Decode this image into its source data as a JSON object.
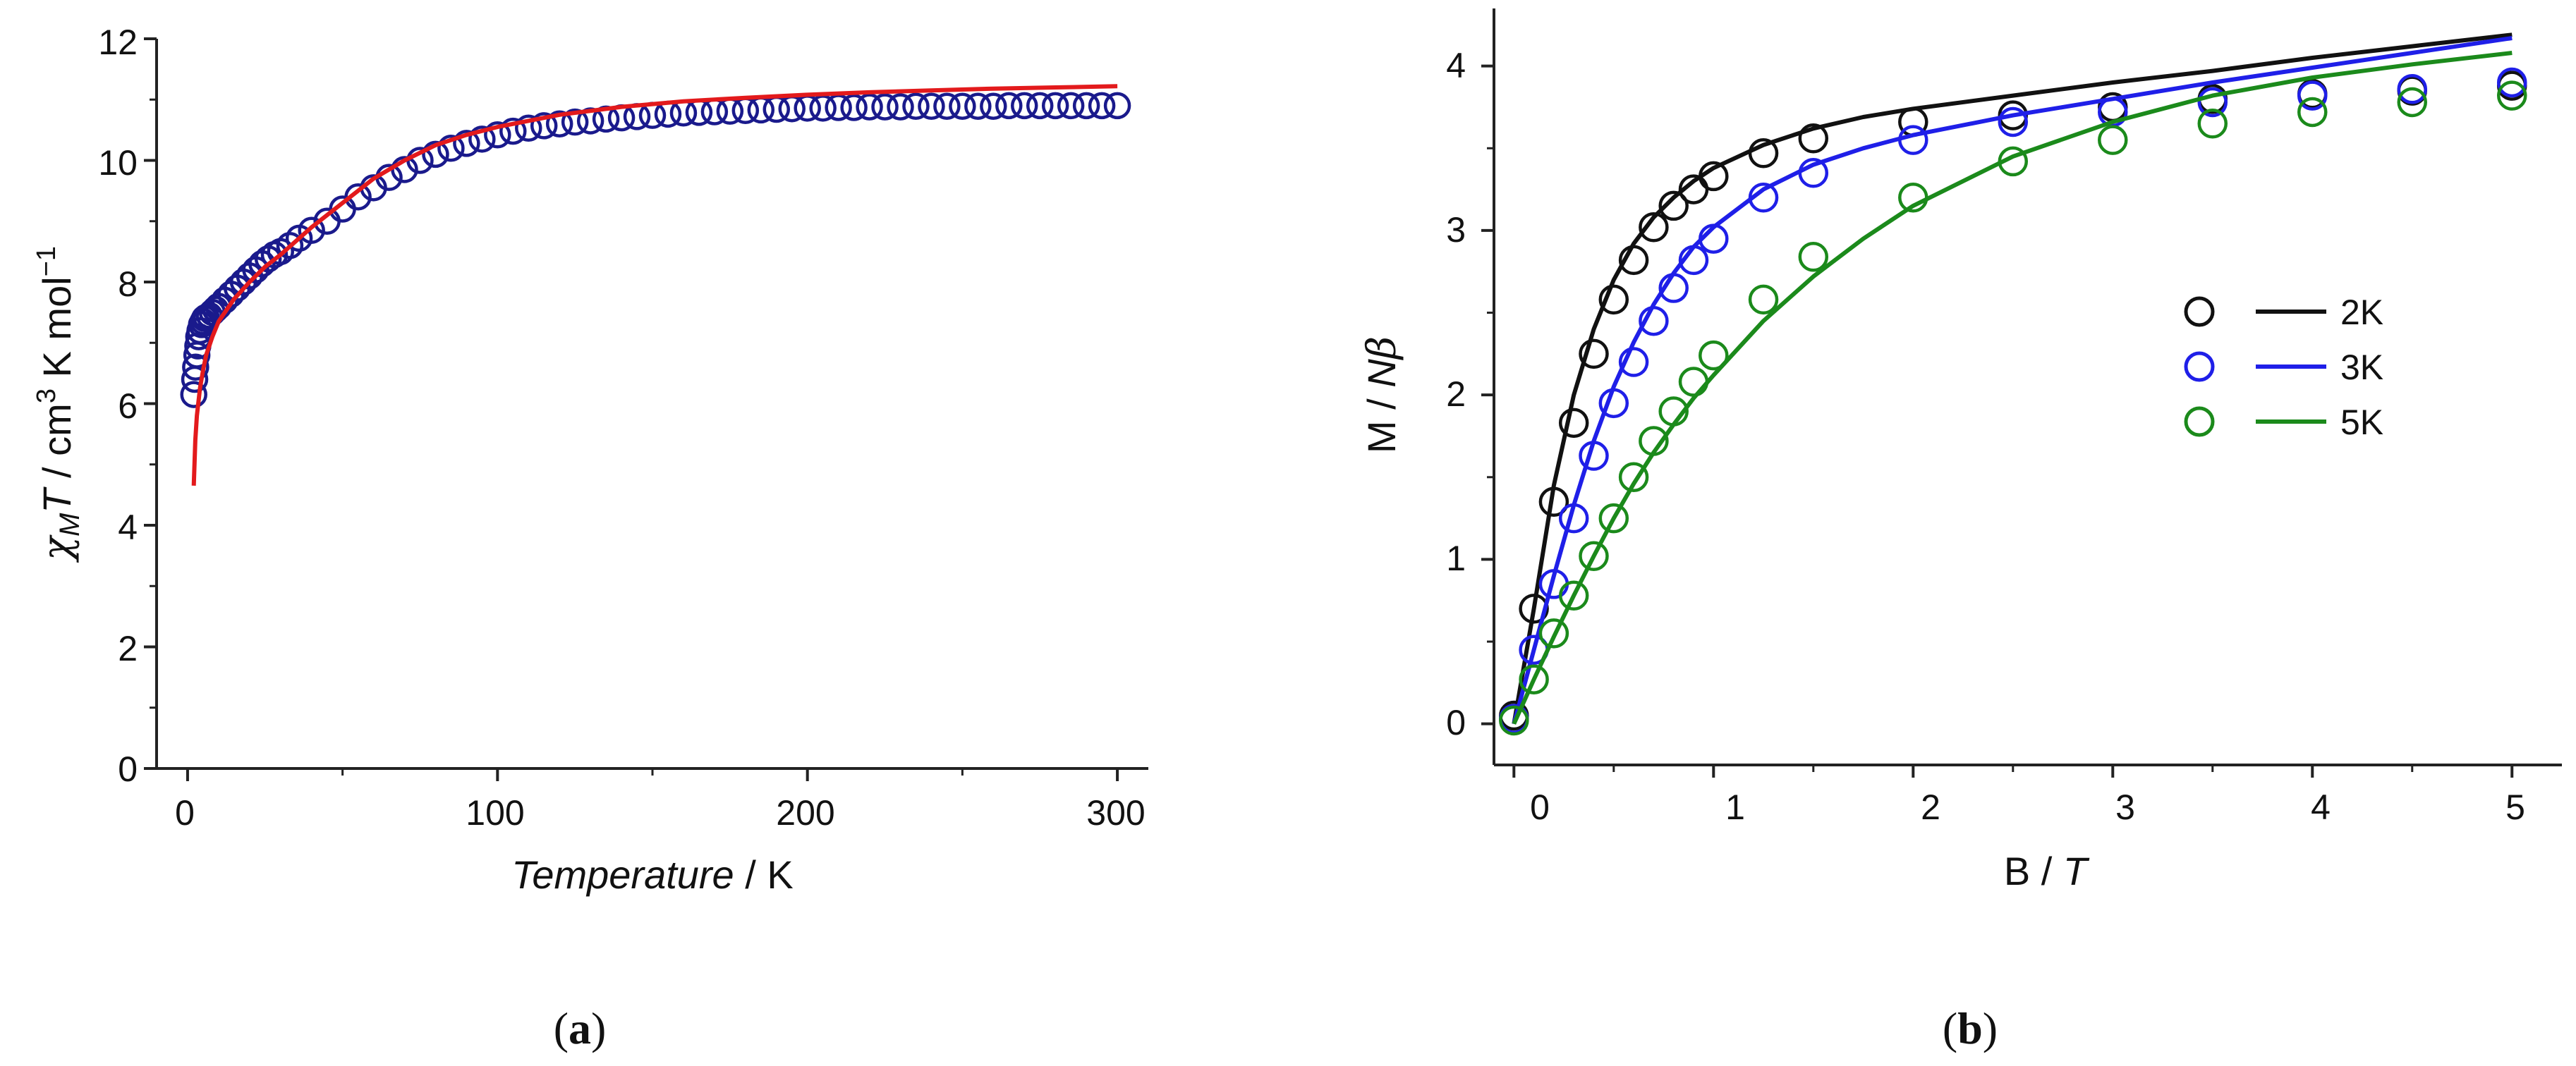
{
  "chart_data": [
    {
      "panel": "a",
      "type": "scatter",
      "title": "",
      "xlabel": {
        "italic": "Temperature",
        "rest": " / K"
      },
      "ylabel": {
        "chi": "χ",
        "sub": "M",
        "T": "T",
        "unit1": " / cm",
        "exp3": "3",
        "unit2": " K mol",
        "expm1": "−1"
      },
      "xlim": [
        -10,
        310
      ],
      "ylim": [
        0,
        12
      ],
      "xticks": [
        "0",
        "100",
        "200",
        "300"
      ],
      "yticks": [
        "0",
        "2",
        "4",
        "6",
        "8",
        "10",
        "12"
      ],
      "grid": false,
      "marker_color": "#1a1a8c",
      "fit_color": "#e31a1c",
      "experimental": {
        "x": [
          2,
          2.3,
          2.6,
          3,
          3.3,
          3.6,
          4,
          4.5,
          5,
          5.5,
          6,
          7,
          8,
          9,
          10,
          12,
          14,
          16,
          18,
          20,
          22,
          24,
          26,
          28,
          30,
          33,
          36,
          40,
          45,
          50,
          55,
          60,
          65,
          70,
          75,
          80,
          85,
          90,
          95,
          100,
          105,
          110,
          115,
          120,
          125,
          130,
          135,
          140,
          145,
          150,
          155,
          160,
          165,
          170,
          175,
          180,
          185,
          190,
          195,
          200,
          205,
          210,
          215,
          220,
          225,
          230,
          235,
          240,
          245,
          250,
          255,
          260,
          265,
          270,
          275,
          280,
          285,
          290,
          295,
          300
        ],
        "y": [
          6.15,
          6.4,
          6.6,
          6.8,
          6.95,
          7.1,
          7.2,
          7.3,
          7.35,
          7.4,
          7.42,
          7.45,
          7.5,
          7.55,
          7.6,
          7.7,
          7.8,
          7.9,
          8.0,
          8.1,
          8.2,
          8.3,
          8.38,
          8.45,
          8.5,
          8.6,
          8.72,
          8.85,
          9.0,
          9.2,
          9.4,
          9.55,
          9.72,
          9.85,
          10.0,
          10.1,
          10.2,
          10.28,
          10.35,
          10.42,
          10.48,
          10.53,
          10.57,
          10.6,
          10.63,
          10.65,
          10.68,
          10.7,
          10.72,
          10.74,
          10.76,
          10.78,
          10.79,
          10.8,
          10.81,
          10.82,
          10.83,
          10.84,
          10.85,
          10.86,
          10.86,
          10.87,
          10.87,
          10.88,
          10.88,
          10.88,
          10.89,
          10.89,
          10.89,
          10.89,
          10.89,
          10.89,
          10.9,
          10.9,
          10.9,
          10.9,
          10.9,
          10.9,
          10.9,
          10.9
        ]
      },
      "fit": {
        "x": [
          2,
          2.5,
          3,
          4,
          5,
          6,
          8,
          10,
          15,
          20,
          25,
          30,
          40,
          50,
          60,
          70,
          80,
          90,
          100,
          120,
          140,
          160,
          180,
          200,
          220,
          240,
          260,
          280,
          300
        ],
        "y": [
          4.65,
          5.4,
          5.8,
          6.25,
          6.55,
          6.8,
          7.1,
          7.35,
          7.72,
          8.0,
          8.25,
          8.45,
          8.9,
          9.3,
          9.7,
          10.0,
          10.25,
          10.42,
          10.55,
          10.75,
          10.88,
          10.97,
          11.03,
          11.08,
          11.12,
          11.15,
          11.18,
          11.2,
          11.22
        ]
      }
    },
    {
      "panel": "b",
      "type": "scatter",
      "title": "",
      "xlabel": {
        "roman": "B / ",
        "italic": "T"
      },
      "ylabel": {
        "roman": "M / ",
        "italic": "N",
        "beta": "β"
      },
      "xlim": [
        -0.1,
        5.25
      ],
      "ylim": [
        -0.25,
        4.35
      ],
      "xticks": [
        "0",
        "1",
        "2",
        "3",
        "4",
        "5"
      ],
      "yticks": [
        "0",
        "1",
        "2",
        "3",
        "4"
      ],
      "grid": false,
      "legend_position": "center-right",
      "series": [
        {
          "name": "2K",
          "color": "#111111",
          "x": [
            0,
            0.1,
            0.2,
            0.3,
            0.4,
            0.5,
            0.6,
            0.7,
            0.8,
            0.9,
            1.0,
            1.25,
            1.5,
            2.0,
            2.5,
            3.0,
            3.5,
            4.0,
            4.5,
            5.0
          ],
          "y": [
            0.05,
            0.7,
            1.35,
            1.83,
            2.25,
            2.58,
            2.82,
            3.02,
            3.15,
            3.25,
            3.33,
            3.47,
            3.56,
            3.66,
            3.7,
            3.75,
            3.8,
            3.83,
            3.85,
            3.88
          ],
          "fit_x": [
            0,
            0.1,
            0.2,
            0.3,
            0.4,
            0.5,
            0.6,
            0.7,
            0.8,
            0.9,
            1.0,
            1.25,
            1.5,
            1.75,
            2.0,
            2.5,
            3.0,
            3.5,
            4.0,
            4.5,
            5.0
          ],
          "fit_y": [
            0,
            0.7,
            1.45,
            2.0,
            2.4,
            2.7,
            2.92,
            3.08,
            3.2,
            3.3,
            3.38,
            3.52,
            3.62,
            3.69,
            3.74,
            3.82,
            3.9,
            3.97,
            4.05,
            4.12,
            4.19
          ]
        },
        {
          "name": "3K",
          "color": "#1f1fe8",
          "x": [
            0,
            0.1,
            0.2,
            0.3,
            0.4,
            0.5,
            0.6,
            0.7,
            0.8,
            0.9,
            1.0,
            1.25,
            1.5,
            2.0,
            2.5,
            3.0,
            3.5,
            4.0,
            4.5,
            5.0
          ],
          "y": [
            0.03,
            0.45,
            0.85,
            1.25,
            1.63,
            1.95,
            2.2,
            2.45,
            2.65,
            2.82,
            2.95,
            3.2,
            3.35,
            3.55,
            3.66,
            3.72,
            3.78,
            3.82,
            3.86,
            3.9
          ],
          "fit_x": [
            0,
            0.1,
            0.2,
            0.3,
            0.4,
            0.5,
            0.6,
            0.7,
            0.8,
            0.9,
            1.0,
            1.25,
            1.5,
            1.75,
            2.0,
            2.5,
            3.0,
            3.5,
            4.0,
            4.5,
            5.0
          ],
          "fit_y": [
            0,
            0.45,
            0.9,
            1.33,
            1.72,
            2.05,
            2.32,
            2.55,
            2.74,
            2.9,
            3.02,
            3.25,
            3.4,
            3.5,
            3.58,
            3.7,
            3.8,
            3.9,
            3.99,
            4.08,
            4.17
          ]
        },
        {
          "name": "5K",
          "color": "#1b8a1b",
          "x": [
            0,
            0.1,
            0.2,
            0.3,
            0.4,
            0.5,
            0.6,
            0.7,
            0.8,
            0.9,
            1.0,
            1.25,
            1.5,
            2.0,
            2.5,
            3.0,
            3.5,
            4.0,
            4.5,
            5.0
          ],
          "y": [
            0.02,
            0.27,
            0.55,
            0.78,
            1.02,
            1.25,
            1.5,
            1.72,
            1.9,
            2.08,
            2.24,
            2.58,
            2.84,
            3.2,
            3.42,
            3.55,
            3.65,
            3.72,
            3.78,
            3.82
          ],
          "fit_x": [
            0,
            0.1,
            0.2,
            0.3,
            0.4,
            0.5,
            0.6,
            0.7,
            0.8,
            0.9,
            1.0,
            1.25,
            1.5,
            1.75,
            2.0,
            2.5,
            3.0,
            3.5,
            4.0,
            4.5,
            5.0
          ],
          "fit_y": [
            0,
            0.27,
            0.53,
            0.78,
            1.02,
            1.25,
            1.46,
            1.65,
            1.82,
            1.98,
            2.12,
            2.45,
            2.72,
            2.95,
            3.15,
            3.45,
            3.66,
            3.82,
            3.93,
            4.01,
            4.08
          ]
        }
      ]
    }
  ],
  "captions": {
    "a": {
      "open": "(",
      "letter": "a",
      "close": ")"
    },
    "b": {
      "open": "(",
      "letter": "b",
      "close": ")"
    }
  }
}
